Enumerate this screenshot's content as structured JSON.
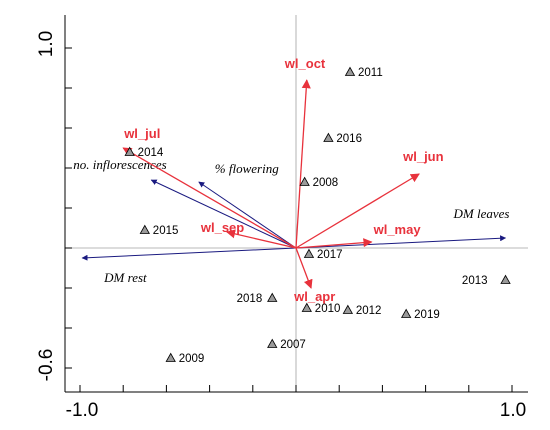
{
  "chart_data": {
    "type": "scatter",
    "title": "",
    "xlabel": "",
    "ylabel": "",
    "xlim": [
      -1.0,
      1.0
    ],
    "ylim": [
      -0.6,
      1.0
    ],
    "x_tick_labels": [
      "-1.0",
      "1.0"
    ],
    "y_tick_labels": [
      "1.0",
      "-0.6"
    ],
    "grid": false,
    "sites": [
      {
        "label": "2011",
        "x": 0.25,
        "y": 0.88
      },
      {
        "label": "2014",
        "x": -0.77,
        "y": 0.48
      },
      {
        "label": "2016",
        "x": 0.15,
        "y": 0.55
      },
      {
        "label": "2008",
        "x": 0.04,
        "y": 0.33
      },
      {
        "label": "2015",
        "x": -0.7,
        "y": 0.09
      },
      {
        "label": "2017",
        "x": 0.06,
        "y": -0.03
      },
      {
        "label": "2013",
        "x": 0.97,
        "y": -0.16
      },
      {
        "label": "2018",
        "x": -0.11,
        "y": -0.25
      },
      {
        "label": "2010",
        "x": 0.05,
        "y": -0.3
      },
      {
        "label": "2012",
        "x": 0.24,
        "y": -0.31
      },
      {
        "label": "2019",
        "x": 0.51,
        "y": -0.33
      },
      {
        "label": "2007",
        "x": -0.11,
        "y": -0.48
      },
      {
        "label": "2009",
        "x": -0.58,
        "y": -0.55
      }
    ],
    "red_vectors": [
      {
        "label": "wl_oct",
        "x": 0.05,
        "y": 0.84
      },
      {
        "label": "wl_jul",
        "x": -0.8,
        "y": 0.5
      },
      {
        "label": "wl_jun",
        "x": 0.57,
        "y": 0.37
      },
      {
        "label": "wl_sep",
        "x": -0.32,
        "y": 0.08
      },
      {
        "label": "wl_may",
        "x": 0.35,
        "y": 0.03
      },
      {
        "label": "wl_apr",
        "x": 0.07,
        "y": -0.2
      }
    ],
    "blue_vectors": [
      {
        "label": "DM leaves",
        "x": 0.97,
        "y": 0.05
      },
      {
        "label": "DM rest",
        "x": -0.99,
        "y": -0.05
      },
      {
        "label": "no. inflorescences",
        "x": -0.67,
        "y": 0.34
      },
      {
        "label": "% flowering",
        "x": -0.45,
        "y": 0.33
      }
    ],
    "colors": {
      "red_vectors": "#e8323c",
      "blue_vectors": "#1a1a80",
      "site_markers": "#9a9a9a",
      "axes": "#000000",
      "zero_lines": "#a0a0a0"
    }
  }
}
